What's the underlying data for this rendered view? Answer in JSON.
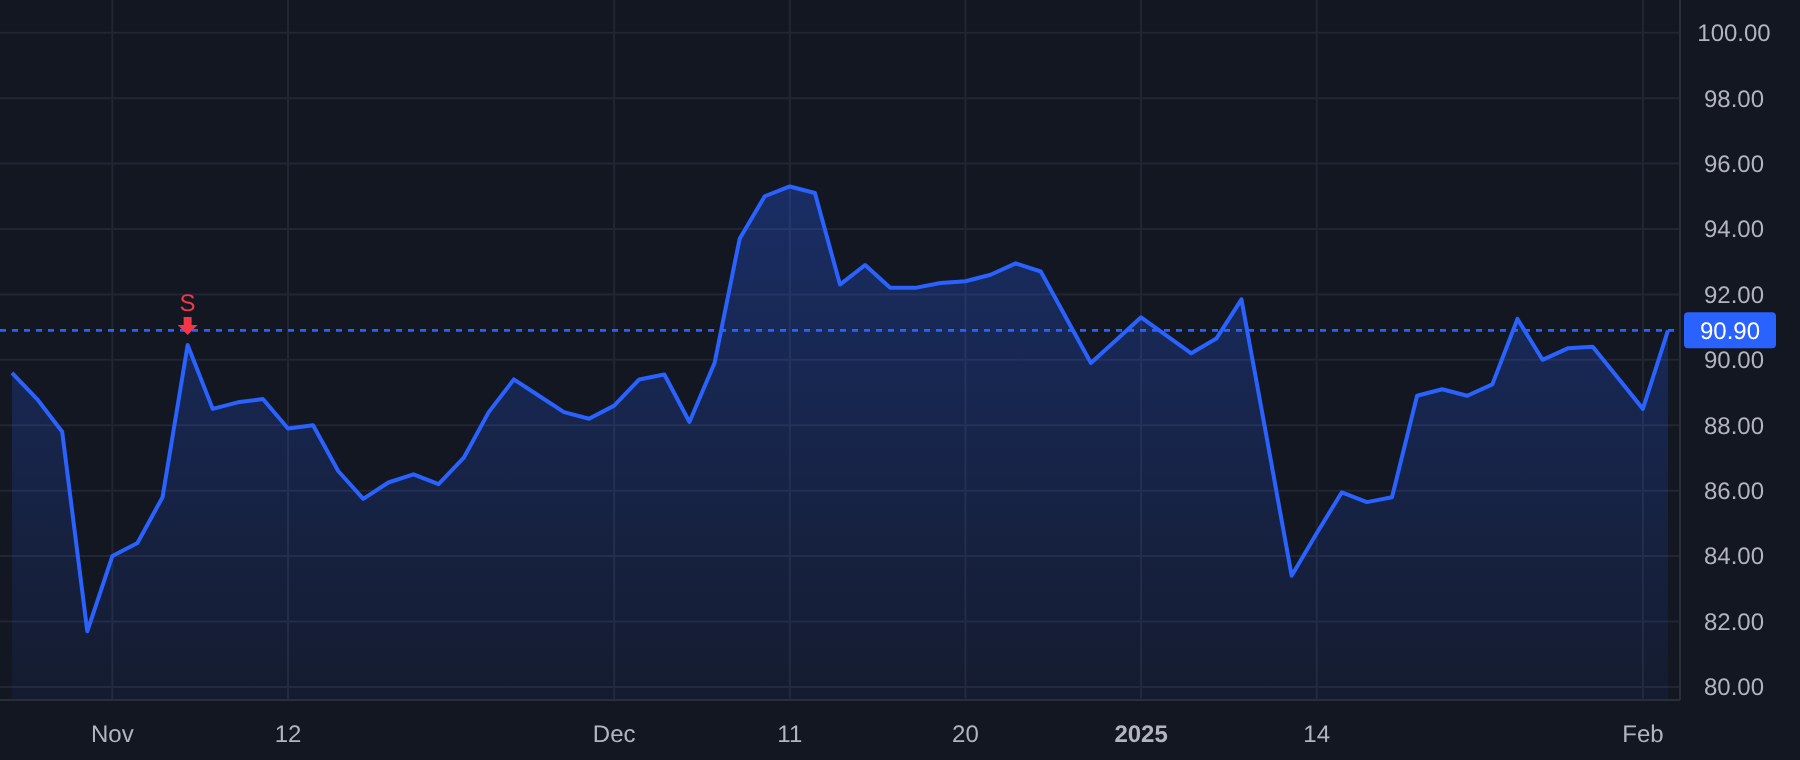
{
  "chart_data": {
    "type": "area",
    "categories": [
      null,
      null,
      null,
      null,
      "Nov",
      null,
      null,
      null,
      null,
      null,
      null,
      "12",
      null,
      null,
      null,
      null,
      null,
      null,
      null,
      null,
      null,
      null,
      null,
      null,
      "Dec",
      null,
      null,
      null,
      null,
      null,
      null,
      "11",
      null,
      null,
      null,
      null,
      null,
      null,
      "20",
      null,
      null,
      null,
      null,
      null,
      null,
      "2025",
      null,
      null,
      null,
      null,
      null,
      null,
      "14",
      null,
      null,
      null,
      null,
      null,
      null,
      null,
      null,
      null,
      null,
      null,
      null,
      "Feb",
      null
    ],
    "series": [
      {
        "color": "#2962ff",
        "values": [
          89.6,
          88.8,
          87.8,
          81.7,
          84.0,
          84.4,
          85.8,
          90.45,
          88.5,
          88.7,
          88.8,
          87.9,
          88.0,
          86.6,
          85.75,
          86.25,
          86.5,
          86.2,
          87.0,
          88.4,
          89.4,
          88.9,
          88.4,
          88.2,
          88.6,
          89.4,
          89.55,
          88.1,
          89.9,
          93.7,
          95.0,
          95.3,
          95.1,
          92.3,
          92.9,
          92.2,
          92.2,
          92.35,
          92.4,
          92.6,
          92.95,
          92.7,
          91.3,
          89.9,
          90.6,
          91.3,
          90.75,
          90.2,
          90.65,
          91.85,
          87.65,
          83.4,
          84.7,
          85.95,
          85.65,
          85.8,
          88.9,
          89.1,
          88.9,
          89.25,
          91.25,
          90.0,
          90.35,
          90.4,
          89.45,
          88.5,
          90.9
        ]
      }
    ],
    "ylim": [
      79.6,
      101.0
    ],
    "yticks": [
      {
        "value": 80,
        "label": "80.00"
      },
      {
        "value": 82,
        "label": "82.00"
      },
      {
        "value": 84,
        "label": "84.00"
      },
      {
        "value": 86,
        "label": "86.00"
      },
      {
        "value": 88,
        "label": "88.00"
      },
      {
        "value": 90,
        "label": "90.00"
      },
      {
        "value": 92,
        "label": "92.00"
      },
      {
        "value": 94,
        "label": "94.00"
      },
      {
        "value": 96,
        "label": "96.00"
      },
      {
        "value": 98,
        "label": "98.00"
      },
      {
        "value": 100,
        "label": "100.00"
      }
    ],
    "grid": true,
    "ref_lines": [
      {
        "axis": "y",
        "value": 90.9,
        "label": "90.90",
        "color": "#2962ff",
        "line_style": "dashed"
      }
    ],
    "annotations": [
      {
        "text": "S",
        "y": 90.45
      }
    ]
  }
}
